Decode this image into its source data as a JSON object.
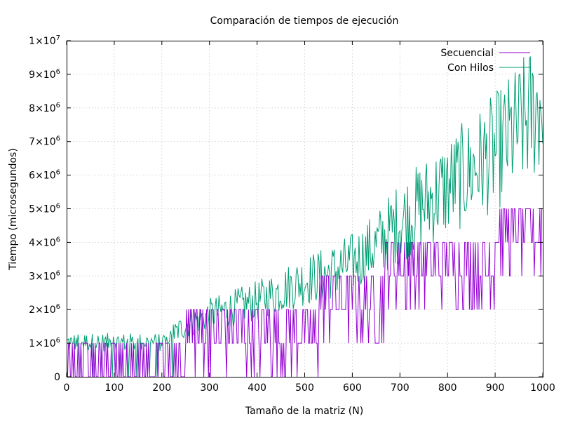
{
  "chart_data": {
    "type": "line",
    "title": "Comparación de tiempos de ejecución",
    "xlabel": "Tamaño de la matriz (N)",
    "ylabel": "Tiempo (microsegundos)",
    "xlim": [
      0,
      1000
    ],
    "ylim": [
      0,
      10000000
    ],
    "x_ticks": [
      0,
      100,
      200,
      300,
      400,
      500,
      600,
      700,
      800,
      900,
      1000
    ],
    "x_tick_labels": [
      "0",
      "100",
      "200",
      "300",
      "400",
      "500",
      "600",
      "700",
      "800",
      "900",
      "1000"
    ],
    "y_ticks": [
      0,
      1000000,
      2000000,
      3000000,
      4000000,
      5000000,
      6000000,
      7000000,
      8000000,
      9000000,
      10000000
    ],
    "y_tick_labels": [
      {
        "mant": "0",
        "exp": ""
      },
      {
        "mant": "1×10",
        "exp": "6"
      },
      {
        "mant": "2×10",
        "exp": "6"
      },
      {
        "mant": "3×10",
        "exp": "6"
      },
      {
        "mant": "4×10",
        "exp": "6"
      },
      {
        "mant": "5×10",
        "exp": "6"
      },
      {
        "mant": "6×10",
        "exp": "6"
      },
      {
        "mant": "7×10",
        "exp": "6"
      },
      {
        "mant": "8×10",
        "exp": "6"
      },
      {
        "mant": "9×10",
        "exp": "6"
      },
      {
        "mant": "1×10",
        "exp": "7"
      }
    ],
    "grid": true,
    "legend_position": "top-right",
    "series": [
      {
        "name": "Secuencial",
        "color": "#9400d3",
        "x": [
          0,
          50,
          100,
          150,
          200,
          220,
          250,
          300,
          350,
          400,
          430,
          450,
          500,
          530,
          560,
          600,
          630,
          650,
          670,
          700,
          750,
          800,
          850,
          900,
          950,
          1000
        ],
        "y": [
          0,
          0,
          0,
          0,
          0,
          500000,
          1000000,
          1000000,
          1000000,
          1000000,
          1000000,
          1500000,
          1000000,
          2000000,
          2000000,
          2000000,
          2000000,
          2000000,
          3000000,
          3000000,
          3000000,
          3000000,
          3000000,
          4000000,
          4000000,
          5000000
        ]
      },
      {
        "name": "Con Hilos",
        "color": "#009e73",
        "x": [
          0,
          50,
          100,
          150,
          200,
          250,
          300,
          350,
          400,
          450,
          500,
          550,
          600,
          650,
          700,
          750,
          800,
          850,
          900,
          950,
          1000
        ],
        "y": [
          1000000,
          1000000,
          1000000,
          1000000,
          1000000,
          1500000,
          1800000,
          2000000,
          2200000,
          2500000,
          2800000,
          3000000,
          3300000,
          3800000,
          4500000,
          5000000,
          5500000,
          6000000,
          6500000,
          7200000,
          8000000
        ]
      }
    ]
  }
}
